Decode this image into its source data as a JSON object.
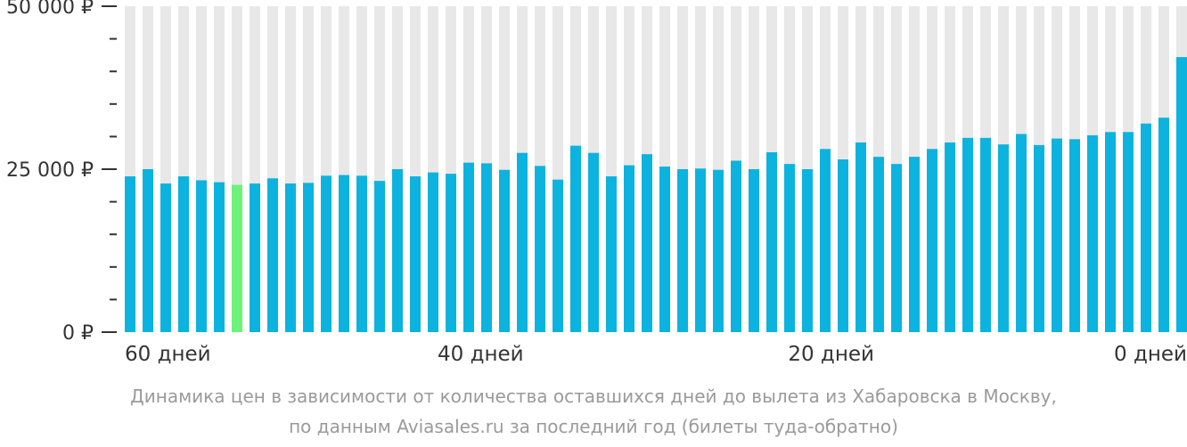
{
  "colors": {
    "bar": "#0cb3df",
    "highlight": "#6ef27a",
    "track": "#e8e8e8",
    "axis": "#333333"
  },
  "caption": {
    "line1": "Динамика цен в зависимости от количества оставшихся дней до вылета из Хабаровска в Москву,",
    "line2": "по данным Aviasales.ru за последний год (билеты туда-обратно)"
  },
  "chart_data": {
    "type": "bar",
    "ylim": [
      0,
      50000
    ],
    "ytick_labels": [
      {
        "value": 0,
        "label": "0 ₽"
      },
      {
        "value": 25000,
        "label": "25 000 ₽"
      },
      {
        "value": 50000,
        "label": "50 000 ₽"
      }
    ],
    "y_minor_step": 5000,
    "xlim": [
      60,
      0
    ],
    "xtick_labels": [
      {
        "day": 60,
        "label": "60 дней"
      },
      {
        "day": 40,
        "label": "40 дней"
      },
      {
        "day": 20,
        "label": "20 дней"
      },
      {
        "day": 0,
        "label": "0 дней"
      }
    ],
    "highlight_index": 6,
    "values": [
      23900,
      25000,
      22800,
      23900,
      23300,
      23000,
      22600,
      22800,
      23600,
      22800,
      22900,
      24000,
      24100,
      24000,
      23200,
      25000,
      23900,
      24500,
      24300,
      26000,
      25900,
      24900,
      27500,
      25500,
      23400,
      28600,
      27500,
      23900,
      25600,
      27300,
      25400,
      25000,
      25100,
      24900,
      26300,
      25000,
      27600,
      25800,
      25000,
      28100,
      26500,
      29100,
      26900,
      25800,
      26900,
      28100,
      29100,
      29800,
      29800,
      28800,
      30400,
      28700,
      29700,
      29600,
      30200,
      30700,
      30700,
      32000,
      32900,
      42200
    ]
  }
}
